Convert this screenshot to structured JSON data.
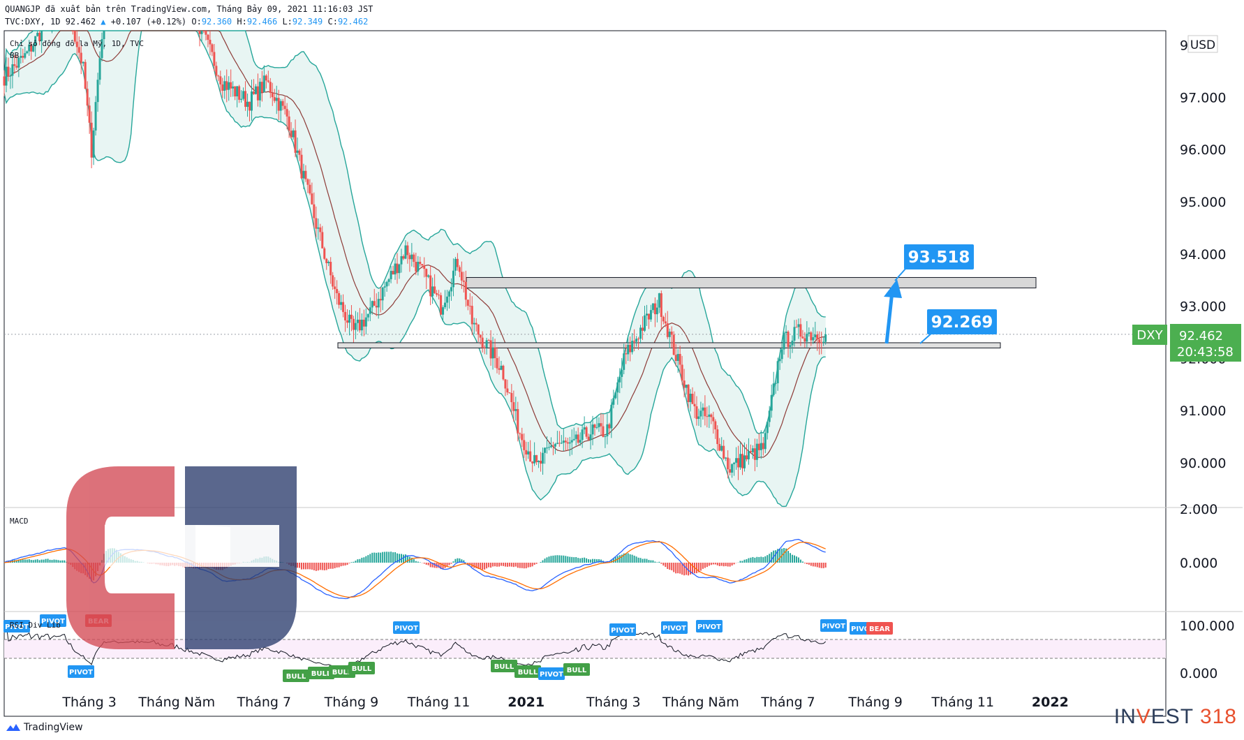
{
  "header": {
    "line1": "QUANGJP đã xuất bản trên TradingView.com, Tháng Bảy 09, 2021 11:16:03 JST",
    "symbol_line": "TVC:DXY, 1D 92.462",
    "change": "+0.107 (+0.12%)",
    "o_label": "O:",
    "o_value": "92.360",
    "h_label": "H:",
    "h_value": "92.466",
    "l_label": "L:",
    "l_value": "92.349",
    "c_label": "C:",
    "c_value": "92.462"
  },
  "legend": {
    "title": "Chỉ số đồng đô la Mỹ, 1D, TVC",
    "indicator": "BB"
  },
  "currency_label": "USD",
  "price_tag": {
    "symbol": "DXY",
    "price": "92.462",
    "countdown": "20:43:58"
  },
  "callouts": {
    "upper": "93.518",
    "lower": "92.269"
  },
  "panes": {
    "macd_label": "MACD",
    "rsi_label": "RSI Div Lib"
  },
  "footer": {
    "brand": "TradingView",
    "logo_left": "IN",
    "logo_mid": "EST",
    "logo_right": "318"
  },
  "colors": {
    "up": "#26a69a",
    "down": "#ef5350",
    "bb_band": "#26a69a",
    "bb_fill": "#e8f5f3",
    "basis": "#8d3b37",
    "callout": "#2196f3",
    "price_tag": "#4caf50",
    "macd_line": "#2962ff",
    "signal_line": "#ff6d00",
    "rsi_line": "#131722",
    "watermark_red": "#d34a55",
    "watermark_navy": "#2c3d6e"
  },
  "chart_data": [
    {
      "type": "candlestick",
      "title": "Chỉ số đồng đô la Mỹ, 1D, TVC",
      "ylim": [
        89.0,
        98.0
      ],
      "y_ticks": [
        90,
        91,
        92,
        93,
        94,
        95,
        96,
        97,
        98
      ],
      "y_tick_labels": [
        "90.000",
        "91.000",
        "92.000",
        "93.000",
        "94.000",
        "95.000",
        "96.000",
        "97.000",
        "98"
      ],
      "x_ticks": [
        "Tháng 3",
        "Tháng Năm",
        "Tháng 7",
        "Tháng 9",
        "Tháng 11",
        "2021",
        "Tháng 3",
        "Tháng Năm",
        "Tháng 7",
        "Tháng 9",
        "Tháng 11",
        "2022"
      ],
      "x_tick_months": [
        2,
        4,
        6,
        8,
        10,
        12,
        14,
        16,
        18,
        20,
        22,
        24
      ],
      "close_path_months": [
        0.0,
        0.5,
        1.0,
        1.4,
        1.8,
        2.0,
        2.3,
        3.4,
        4.0,
        4.5,
        5.0,
        5.6,
        6.0,
        6.5,
        7.0,
        7.6,
        8.0,
        8.4,
        8.8,
        9.2,
        9.6,
        10.0,
        10.4,
        10.7,
        11.0,
        11.4,
        11.8,
        12.2,
        12.6,
        13.0,
        13.4,
        13.8,
        14.2,
        14.6,
        15.0,
        15.4,
        15.8,
        16.2,
        16.6,
        17.0,
        17.4,
        17.8,
        18.2,
        18.6,
        19.0
      ],
      "close_path_values": [
        97.4,
        97.8,
        98.5,
        98.9,
        97.6,
        96.0,
        98.8,
        99.2,
        99.1,
        98.3,
        97.3,
        96.9,
        97.3,
        96.6,
        95.0,
        93.2,
        92.5,
        92.9,
        93.5,
        94.1,
        93.6,
        93.0,
        93.9,
        92.7,
        92.3,
        91.8,
        90.6,
        89.9,
        90.4,
        90.3,
        90.6,
        90.6,
        92.0,
        92.6,
        93.1,
        92.0,
        91.0,
        90.8,
        89.9,
        90.1,
        90.3,
        92.3,
        92.5,
        92.46,
        92.46
      ],
      "resistance_zone": [
        93.35,
        93.55
      ],
      "support_zone": [
        92.2,
        92.3
      ],
      "last_price": 92.462
    },
    {
      "type": "line",
      "name": "MACD",
      "y_tick_labels": [
        "2.000",
        "0.000"
      ]
    },
    {
      "type": "line",
      "name": "RSI Div Lib",
      "y_tick_labels": [
        "100.000",
        "0.000"
      ],
      "bands": [
        70,
        30
      ],
      "annotations": [
        "PIVOT",
        "PIVOT",
        "PIVOT",
        "BEAR",
        "PIVOT",
        "BULL",
        "BULL",
        "BULL",
        "BULL",
        "PIVOT",
        "BULL",
        "BULL",
        "PIVOT",
        "BULL",
        "PIVOT",
        "PIVOT",
        "PIVOT",
        "PIVOT",
        "BEAR"
      ]
    }
  ]
}
